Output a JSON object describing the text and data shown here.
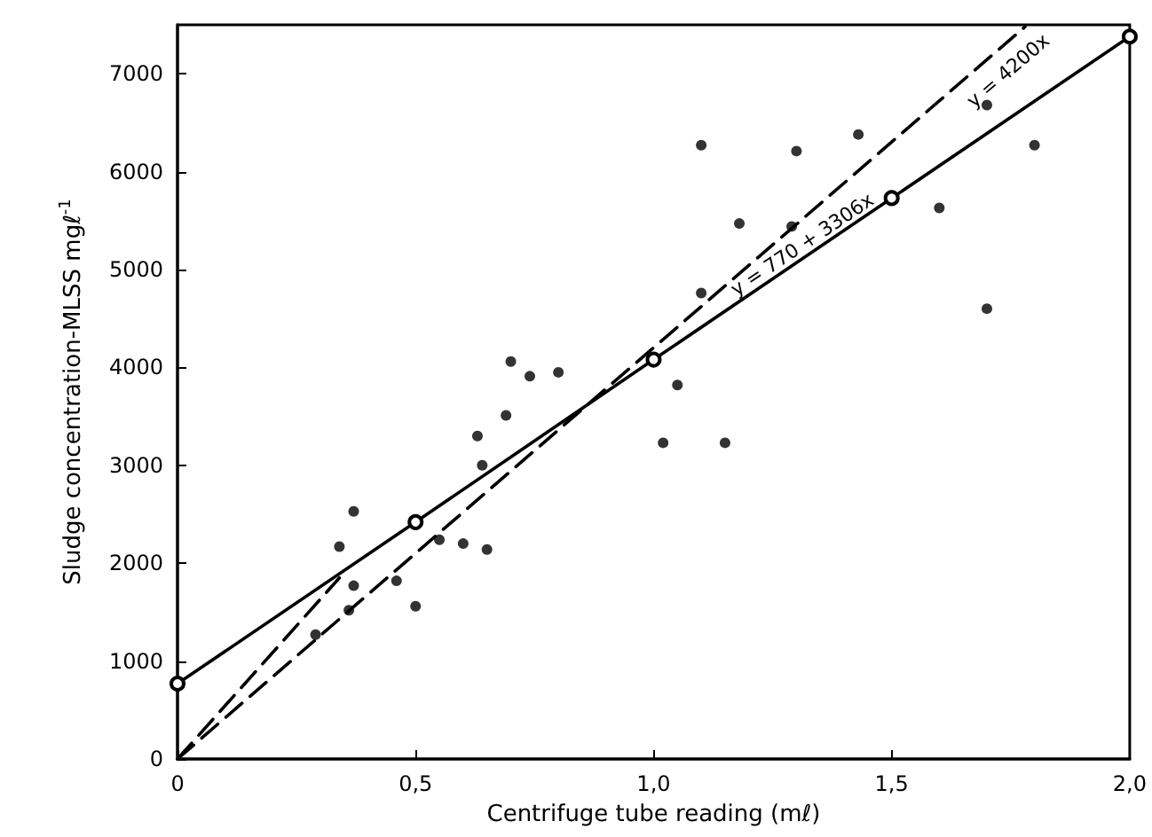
{
  "chart_data": {
    "type": "scatter",
    "xlabel": "Centrifuge tube reading (mℓ)",
    "ylabel": "Sludge concentration-MLSS mgℓ$^{-1}$",
    "xlim": [
      0,
      2.0
    ],
    "ylim": [
      0,
      7500
    ],
    "xticks": [
      {
        "value": 0,
        "label": "0"
      },
      {
        "value": 0.5,
        "label": "0,5"
      },
      {
        "value": 1.0,
        "label": "1,0"
      },
      {
        "value": 1.5,
        "label": "1,5"
      },
      {
        "value": 2.0,
        "label": "2,0"
      }
    ],
    "yticks": [
      0,
      1000,
      2000,
      3000,
      4000,
      5000,
      6000,
      7000
    ],
    "grid": false,
    "series": [
      {
        "color": "#000000",
        "marker": "circle",
        "x": [
          0.29,
          0.34,
          0.36,
          0.37,
          0.37,
          0.46,
          0.5,
          0.55,
          0.6,
          0.63,
          0.64,
          0.65,
          0.69,
          0.7,
          0.74,
          0.8,
          1.02,
          1.05,
          1.1,
          1.1,
          1.15,
          1.18,
          1.29,
          1.3,
          1.43,
          1.6,
          1.7,
          1.7,
          1.8
        ],
        "values": [
          1270,
          2170,
          1520,
          1770,
          2530,
          1820,
          1560,
          2240,
          2200,
          3300,
          3000,
          2140,
          3510,
          4060,
          3910,
          3950,
          3230,
          3820,
          6270,
          4760,
          3230,
          5470,
          5440,
          6210,
          6380,
          5630,
          4600,
          6680,
          6270
        ]
      },
      {
        "type": "line",
        "color": "#000000",
        "marker": "circle",
        "line_style": "solid",
        "x": [
          0,
          0.5,
          1.0,
          1.5,
          2.0
        ],
        "values": [
          770,
          2420,
          4080,
          5730,
          7380
        ]
      },
      {
        "type": "line",
        "color": "#000000",
        "marker": "none",
        "line_style": "dashed",
        "x": [
          0,
          1.78
        ],
        "values": [
          0,
          7480
        ]
      },
      {
        "type": "line",
        "color": "#000000",
        "marker": "none",
        "line_style": "dashed",
        "x": [
          0,
          0.34
        ],
        "values": [
          0,
          1850
        ]
      }
    ],
    "annotations": [
      "y = 4200x",
      "y = 770 + 3306x"
    ]
  }
}
